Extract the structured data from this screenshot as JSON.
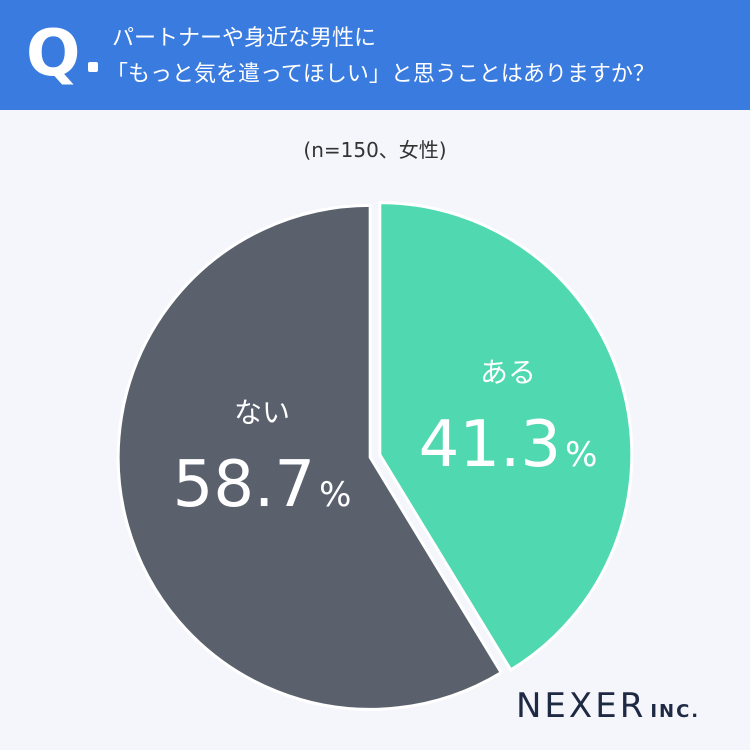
{
  "question": {
    "mark": "Q",
    "line1": "パートナーや身近な男性に",
    "line2": "「もっと気を遣ってほしい」と思うことはありますか？"
  },
  "sample_note": "(n=150、女性)",
  "logo": {
    "main": "NEXER",
    "sub": "INC."
  },
  "colors": {
    "header": "#3a7be0",
    "yes": "#50d8b0",
    "no": "#5a616d",
    "background": "#f5f6fc"
  },
  "chart_data": {
    "type": "pie",
    "categories": [
      "ある",
      "ない"
    ],
    "values": [
      41.3,
      58.7
    ],
    "value_labels": [
      "41.3",
      "58.7"
    ],
    "unit": "%",
    "start": "12 o'clock, clockwise"
  }
}
